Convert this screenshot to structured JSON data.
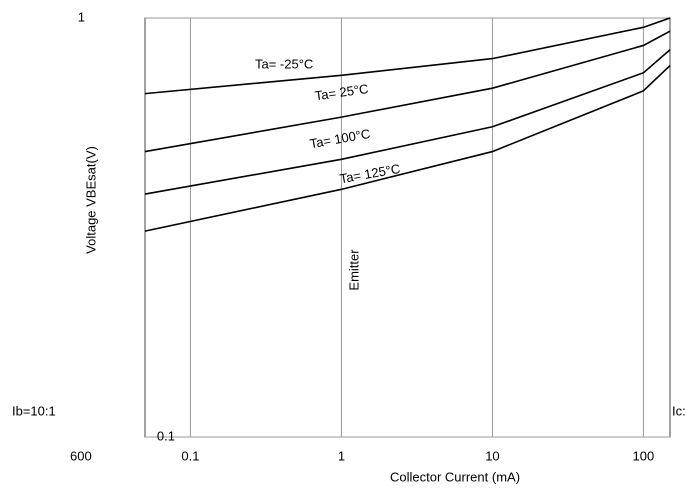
{
  "chart_data": {
    "type": "line",
    "x_label": "Collector Current (mA)",
    "y_label": "Voltage VBEsat(V)",
    "annotations": [
      "Emitter",
      "Ib=10:1",
      "Ic:",
      "600"
    ],
    "x": [
      0.05,
      1,
      10,
      100,
      150
    ],
    "series": [
      {
        "name": "Ta= -25°C",
        "color": "#000000",
        "values": [
          0.66,
          0.73,
          0.8,
          0.95,
          1.0
        ]
      },
      {
        "name": "Ta= 25°C",
        "color": "#000000",
        "values": [
          0.48,
          0.58,
          0.68,
          0.86,
          0.93
        ]
      },
      {
        "name": "Ta= 100°C",
        "color": "#000000",
        "values": [
          0.38,
          0.46,
          0.55,
          0.74,
          0.84
        ]
      },
      {
        "name": "Ta= 125°C",
        "color": "#000000",
        "values": [
          0.31,
          0.39,
          0.48,
          0.67,
          0.77
        ]
      }
    ],
    "xlim": [
      0.05,
      150
    ],
    "ylim": [
      0.1,
      1
    ],
    "xticks": [
      0.1,
      1,
      10,
      100
    ],
    "yticks": [
      0.1,
      1
    ],
    "xlog": true,
    "ylog": true,
    "grid": true
  }
}
